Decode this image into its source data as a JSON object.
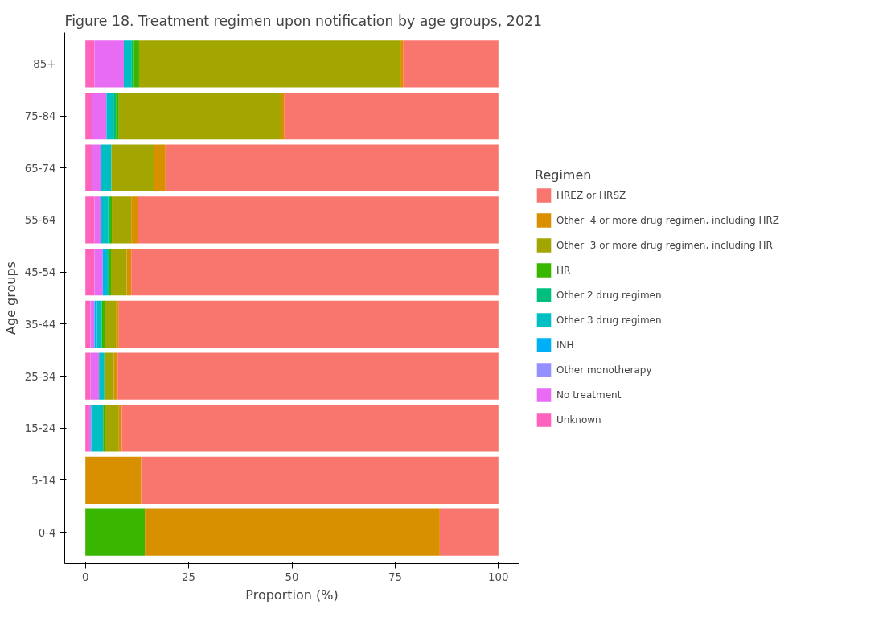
{
  "chart_data": {
    "type": "bar",
    "orientation": "horizontal",
    "stacked": true,
    "title": "Figure 18. Treatment regimen upon notification by age groups, 2021",
    "xlabel": "Proportion (%)",
    "ylabel": "Age groups",
    "legend_title": "Regimen",
    "legend": "right",
    "grid": false,
    "categories": [
      "85+",
      "75-84",
      "65-74",
      "55-64",
      "45-54",
      "35-44",
      "25-34",
      "15-24",
      "5-14",
      "0-4"
    ],
    "xlim": [
      -5,
      105
    ],
    "xticks": [
      0,
      25,
      50,
      75,
      100
    ],
    "series": [
      {
        "name": "Unknown",
        "color": "#ff62bc",
        "values": [
          2.2,
          1.6,
          1.6,
          2.2,
          2.2,
          1.2,
          1.2,
          0.7,
          0,
          0
        ]
      },
      {
        "name": "No treatment",
        "color": "#e76bf3",
        "values": [
          7.1,
          3.5,
          2.2,
          1.6,
          2.0,
          1.0,
          2.1,
          0.7,
          0,
          0
        ]
      },
      {
        "name": "Other monotherapy",
        "color": "#9590ff",
        "values": [
          0,
          0,
          0,
          0,
          0,
          0,
          0,
          0,
          0,
          0
        ]
      },
      {
        "name": "INH",
        "color": "#00b0f6",
        "values": [
          0,
          0,
          0,
          0,
          0.6,
          0.6,
          0,
          0,
          0,
          0
        ]
      },
      {
        "name": "Other 3 drug regimen",
        "color": "#00bfc4",
        "values": [
          1.8,
          1.7,
          2.5,
          1.7,
          0.8,
          1.2,
          1.3,
          2.9,
          0,
          0
        ]
      },
      {
        "name": "Other 2 drug regimen",
        "color": "#00bf7d",
        "values": [
          0.6,
          0.6,
          0,
          0.5,
          0,
          0,
          0,
          0,
          0,
          0
        ]
      },
      {
        "name": "HR",
        "color": "#39b600",
        "values": [
          1.3,
          0.7,
          0,
          0.4,
          0.6,
          0.8,
          0,
          0.5,
          0,
          14.4
        ]
      },
      {
        "name": "Other  3 or more drug regimen, including HR",
        "color": "#a3a500",
        "values": [
          63.3,
          39.2,
          10.3,
          4.7,
          3.8,
          2.6,
          2.3,
          3.3,
          0,
          0
        ]
      },
      {
        "name": "Other  4 or more drug regimen, including HRZ",
        "color": "#d89000",
        "values": [
          0.7,
          0.9,
          2.8,
          1.7,
          1.1,
          0.7,
          0.9,
          0.7,
          13.5,
          71.4
        ]
      },
      {
        "name": "HREZ or HRSZ",
        "color": "#f8766d",
        "values": [
          23.0,
          51.8,
          80.6,
          87.2,
          88.9,
          91.9,
          92.2,
          91.2,
          86.5,
          14.2
        ]
      }
    ]
  }
}
